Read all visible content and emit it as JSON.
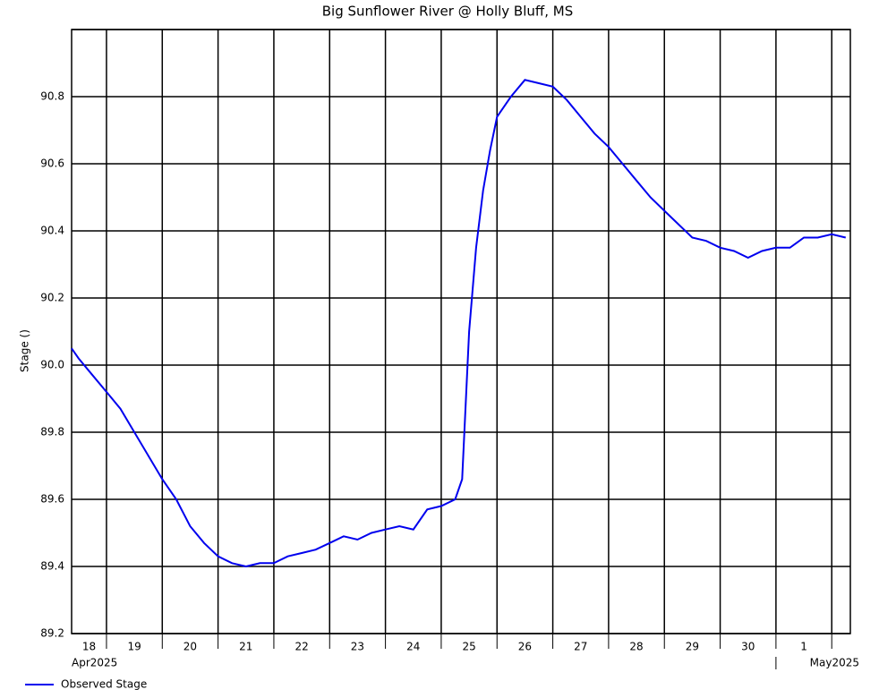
{
  "chart_data": {
    "type": "line",
    "title": "Big Sunflower River @ Holly Bluff, MS",
    "y_label": "Stage ()",
    "x": [
      "2025-04-18T09:00",
      "2025-04-18T12:00",
      "2025-04-18T18:00",
      "2025-04-19T00:00",
      "2025-04-19T06:00",
      "2025-04-19T12:00",
      "2025-04-19T18:00",
      "2025-04-20T00:00",
      "2025-04-20T06:00",
      "2025-04-20T12:00",
      "2025-04-20T18:00",
      "2025-04-21T00:00",
      "2025-04-21T06:00",
      "2025-04-21T12:00",
      "2025-04-21T18:00",
      "2025-04-22T00:00",
      "2025-04-22T06:00",
      "2025-04-22T12:00",
      "2025-04-22T18:00",
      "2025-04-23T00:00",
      "2025-04-23T06:00",
      "2025-04-23T12:00",
      "2025-04-23T18:00",
      "2025-04-24T00:00",
      "2025-04-24T06:00",
      "2025-04-24T12:00",
      "2025-04-24T18:00",
      "2025-04-25T00:00",
      "2025-04-25T06:00",
      "2025-04-25T09:00",
      "2025-04-25T12:00",
      "2025-04-25T15:00",
      "2025-04-25T18:00",
      "2025-04-25T21:00",
      "2025-04-26T00:00",
      "2025-04-26T06:00",
      "2025-04-26T12:00",
      "2025-04-26T18:00",
      "2025-04-27T00:00",
      "2025-04-27T06:00",
      "2025-04-27T12:00",
      "2025-04-27T18:00",
      "2025-04-28T00:00",
      "2025-04-28T06:00",
      "2025-04-28T12:00",
      "2025-04-28T18:00",
      "2025-04-29T00:00",
      "2025-04-29T06:00",
      "2025-04-29T12:00",
      "2025-04-29T18:00",
      "2025-04-30T00:00",
      "2025-04-30T06:00",
      "2025-04-30T12:00",
      "2025-04-30T18:00",
      "2025-05-01T00:00",
      "2025-05-01T06:00",
      "2025-05-01T12:00",
      "2025-05-01T18:00",
      "2025-05-02T00:00",
      "2025-05-02T06:00"
    ],
    "series": [
      {
        "name": "Observed Stage",
        "color": "#0000ee",
        "values": [
          90.05,
          90.02,
          89.97,
          89.92,
          89.87,
          89.8,
          89.73,
          89.66,
          89.6,
          89.52,
          89.47,
          89.43,
          89.41,
          89.4,
          89.41,
          89.41,
          89.43,
          89.44,
          89.45,
          89.47,
          89.49,
          89.48,
          89.5,
          89.51,
          89.52,
          89.51,
          89.57,
          89.58,
          89.6,
          89.66,
          90.1,
          90.35,
          90.52,
          90.64,
          90.74,
          90.8,
          90.85,
          90.84,
          90.83,
          90.79,
          90.74,
          90.69,
          90.65,
          90.6,
          90.55,
          90.5,
          90.46,
          90.42,
          90.38,
          90.37,
          90.35,
          90.34,
          90.32,
          90.34,
          90.35,
          90.35,
          90.38,
          90.38,
          90.39,
          90.38
        ]
      }
    ],
    "xlim": [
      "2025-04-18T09:00",
      "2025-05-02T08:00"
    ],
    "xticks": [
      {
        "value": "2025-04-18",
        "label": "18"
      },
      {
        "value": "2025-04-19",
        "label": "19"
      },
      {
        "value": "2025-04-20",
        "label": "20"
      },
      {
        "value": "2025-04-21",
        "label": "21"
      },
      {
        "value": "2025-04-22",
        "label": "22"
      },
      {
        "value": "2025-04-23",
        "label": "23"
      },
      {
        "value": "2025-04-24",
        "label": "24"
      },
      {
        "value": "2025-04-25",
        "label": "25"
      },
      {
        "value": "2025-04-26",
        "label": "26"
      },
      {
        "value": "2025-04-27",
        "label": "27"
      },
      {
        "value": "2025-04-28",
        "label": "28"
      },
      {
        "value": "2025-04-29",
        "label": "29"
      },
      {
        "value": "2025-04-30",
        "label": "30"
      },
      {
        "value": "2025-05-01",
        "label": "1"
      },
      {
        "value": "2025-05-02",
        "label": ""
      }
    ],
    "month_labels": [
      {
        "value": "2025-04-18",
        "label": "Apr2025"
      },
      {
        "value": "2025-05-01",
        "label": "May2025"
      }
    ],
    "ylim": [
      89.2,
      91.0
    ],
    "yticks": [
      89.2,
      89.4,
      89.6,
      89.8,
      {
        "value": 90,
        "label": "90.0"
      },
      90.2,
      90.4,
      90.6,
      90.8,
      {
        "value": 91,
        "label": null
      }
    ],
    "grid": true
  }
}
